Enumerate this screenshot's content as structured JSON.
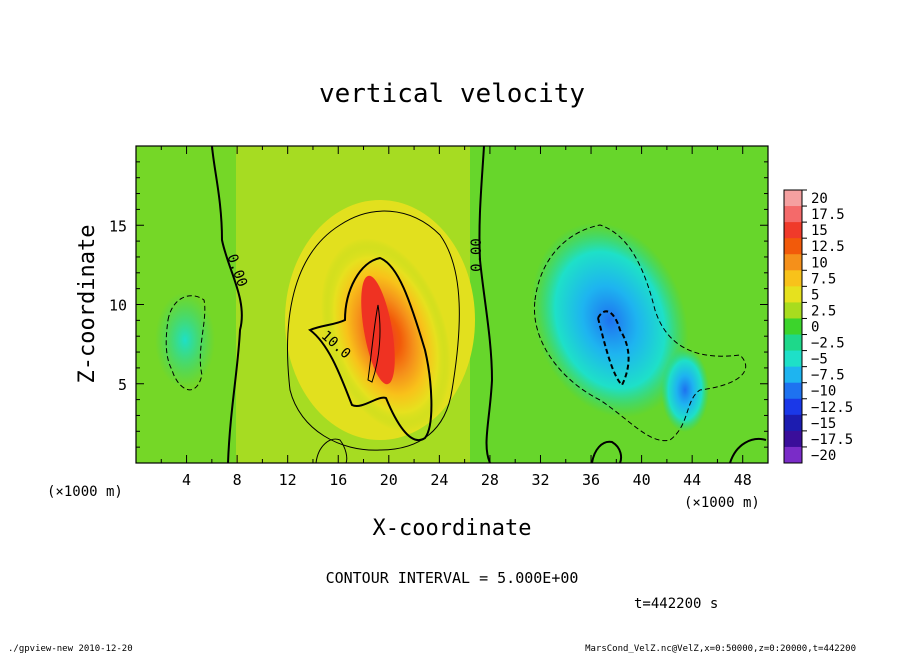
{
  "chart_data": {
    "type": "heatmap",
    "title": "vertical velocity",
    "xlabel": "X-coordinate",
    "ylabel": "Z-coordinate",
    "x_unit": "(×1000 m)",
    "y_unit": "(×1000 m)",
    "xlim": [
      0,
      50
    ],
    "ylim": [
      0,
      20
    ],
    "x_ticks": [
      "4",
      "8",
      "12",
      "16",
      "20",
      "24",
      "28",
      "32",
      "36",
      "40",
      "44",
      "48"
    ],
    "y_ticks": [
      "5",
      "10",
      "15"
    ],
    "colorbar": {
      "labels": [
        "20",
        "17.5",
        "15",
        "12.5",
        "10",
        "7.5",
        "5",
        "2.5",
        "0",
        "−2.5",
        "−5",
        "−7.5",
        "−10",
        "−12.5",
        "−15",
        "−17.5",
        "−20"
      ],
      "colors": [
        "#f5a0a0",
        "#f46a6a",
        "#f03a2a",
        "#f25a0a",
        "#f5901a",
        "#f8c21a",
        "#e6e11e",
        "#a8dc1e",
        "#3cd42c",
        "#1ed88a",
        "#1ee0c8",
        "#1eb4f0",
        "#1e72f0",
        "#1a38e8",
        "#1c1cb0",
        "#3a0e9a",
        "#7a2cc8"
      ]
    },
    "contour_labels": [
      "0.00",
      "0.00",
      "10.0"
    ],
    "features": [
      {
        "x": 19.5,
        "z": 7.5,
        "w": 11.4
      },
      {
        "x": 37.5,
        "z": 9.0,
        "w": -11.0
      },
      {
        "x": 4.0,
        "z": 7.0,
        "w": -4.0
      },
      {
        "x": 43.0,
        "z": 5.0,
        "w": -5.0
      }
    ],
    "contour_interval": "CONTOUR INTERVAL = 5.000E+00",
    "time": "t=442200 s"
  },
  "footer": {
    "left": "./gpview-new  2010-12-20",
    "right": "MarsCond_VelZ.nc@VelZ,x=0:50000,z=0:20000,t=442200"
  }
}
